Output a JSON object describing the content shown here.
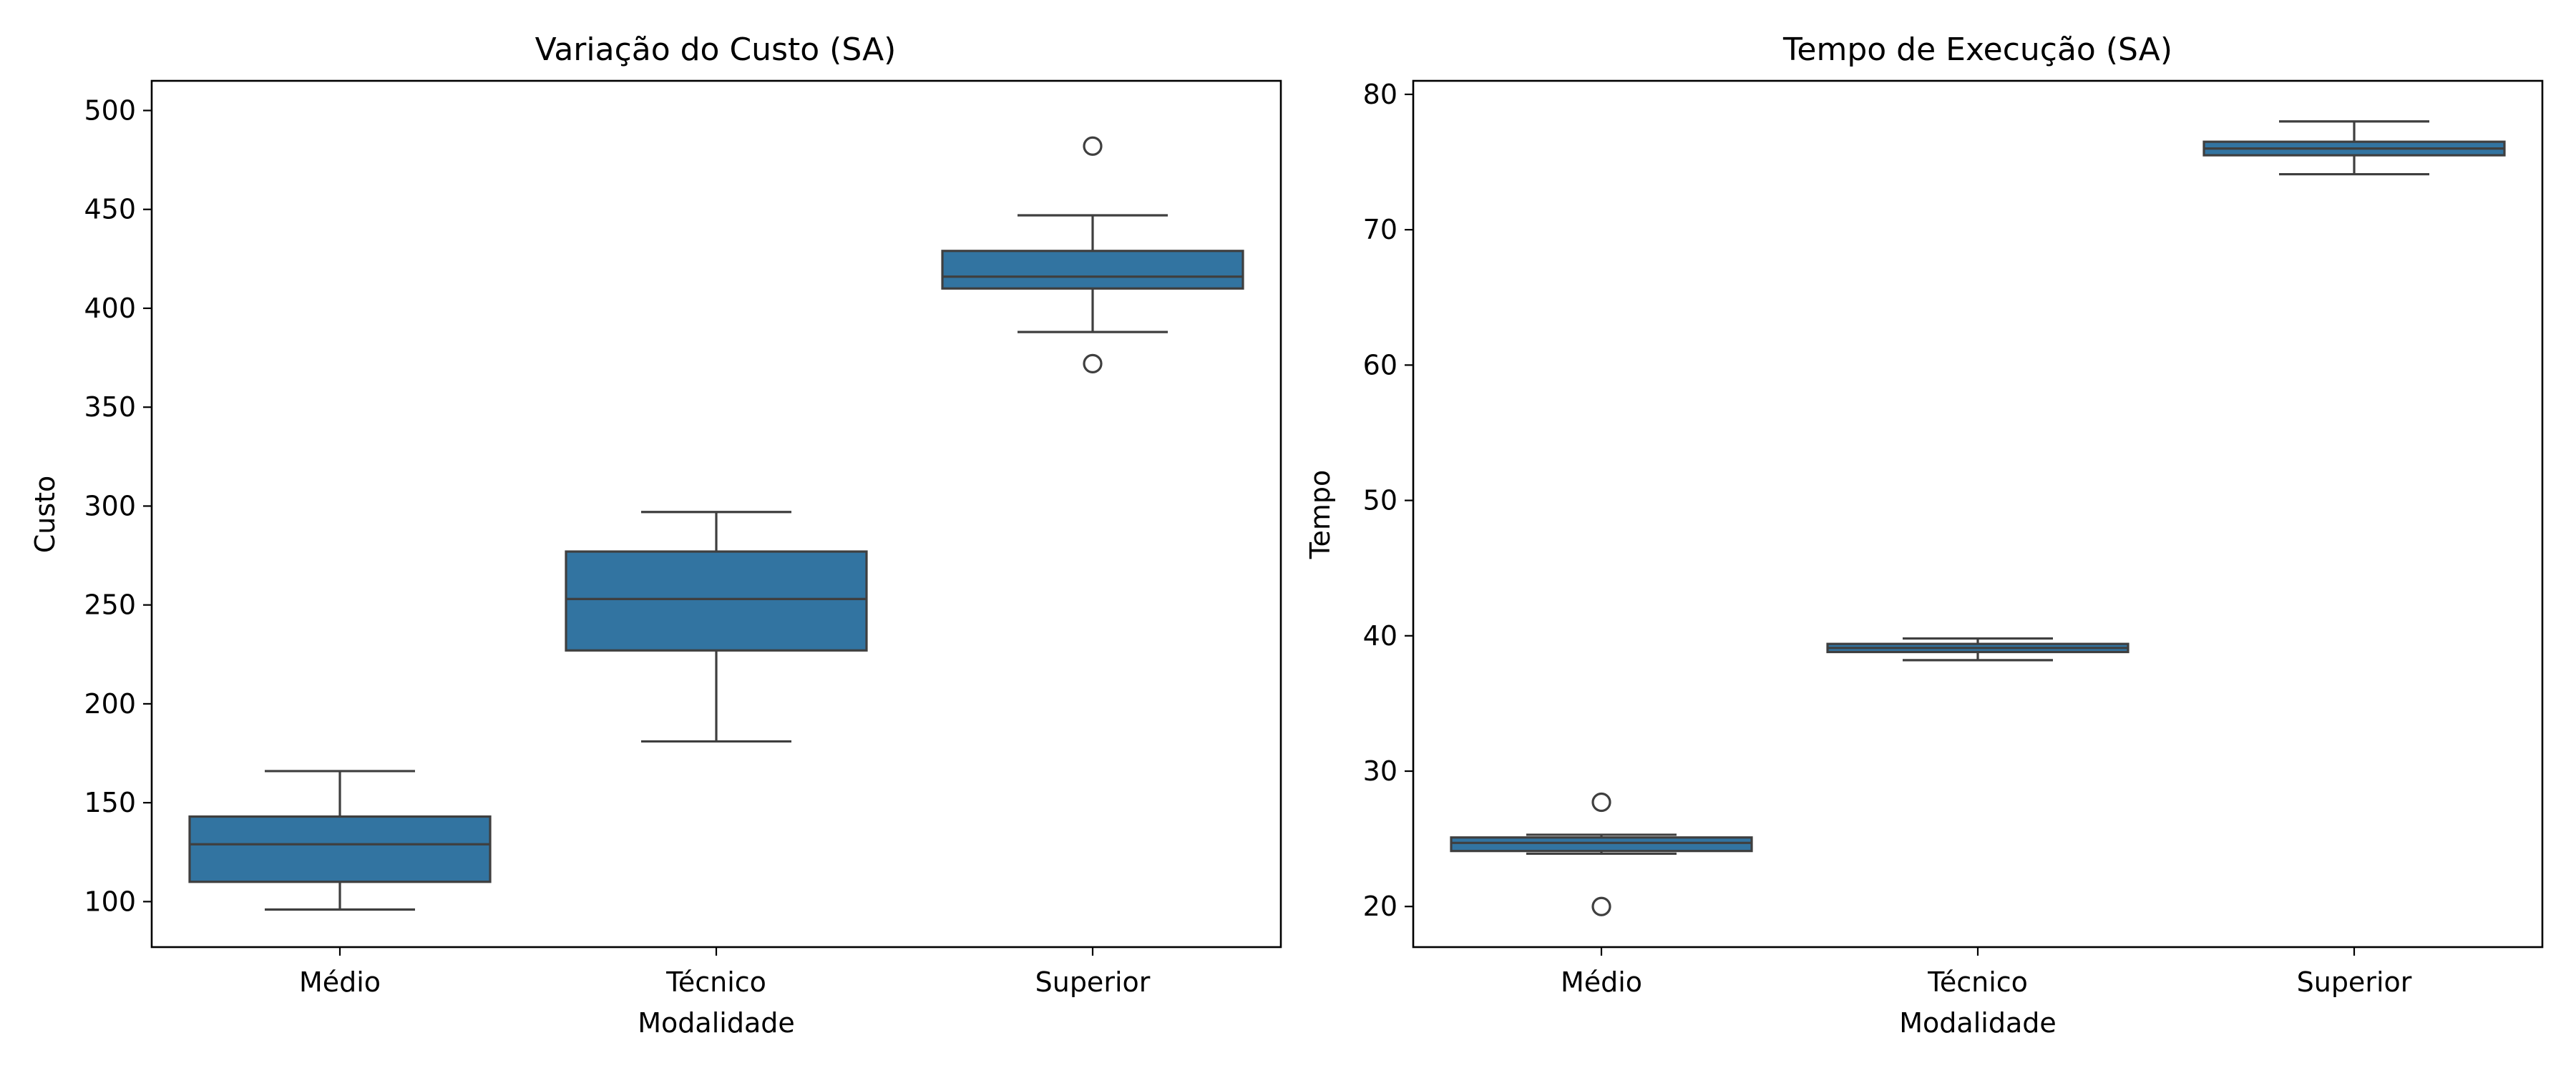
{
  "chart_data": [
    {
      "type": "box",
      "title": "Variação do Custo (SA)",
      "xlabel": "Modalidade",
      "ylabel": "Custo",
      "categories": [
        "Médio",
        "Técnico",
        "Superior"
      ],
      "ylim": [
        77,
        515
      ],
      "yticks": [
        "100",
        "150",
        "200",
        "250",
        "300",
        "350",
        "400",
        "450",
        "500"
      ],
      "grid": false,
      "color": "#3274a1",
      "boxes": [
        {
          "category": "Médio",
          "whisker_low": 96,
          "q1": 110,
          "median": 129,
          "q3": 143,
          "whisker_high": 166,
          "outliers": []
        },
        {
          "category": "Técnico",
          "whisker_low": 181,
          "q1": 227,
          "median": 253,
          "q3": 277,
          "whisker_high": 297,
          "outliers": []
        },
        {
          "category": "Superior",
          "whisker_low": 388,
          "q1": 410,
          "median": 416,
          "q3": 429,
          "whisker_high": 447,
          "outliers": [
            372,
            482
          ]
        }
      ]
    },
    {
      "type": "box",
      "title": "Tempo de Execução (SA)",
      "xlabel": "Modalidade",
      "ylabel": "Tempo",
      "categories": [
        "Médio",
        "Técnico",
        "Superior"
      ],
      "ylim": [
        17,
        81
      ],
      "yticks": [
        "20",
        "30",
        "40",
        "50",
        "60",
        "70",
        "80"
      ],
      "grid": false,
      "color": "#3274a1",
      "boxes": [
        {
          "category": "Médio",
          "whisker_low": 23.9,
          "q1": 24.1,
          "median": 24.7,
          "q3": 25.1,
          "whisker_high": 25.3,
          "outliers": [
            20.0,
            27.7
          ]
        },
        {
          "category": "Técnico",
          "whisker_low": 38.2,
          "q1": 38.8,
          "median": 39.1,
          "q3": 39.4,
          "whisker_high": 39.8,
          "outliers": []
        },
        {
          "category": "Superior",
          "whisker_low": 74.1,
          "q1": 75.5,
          "median": 76.0,
          "q3": 76.5,
          "whisker_high": 78.0,
          "outliers": []
        }
      ]
    }
  ]
}
